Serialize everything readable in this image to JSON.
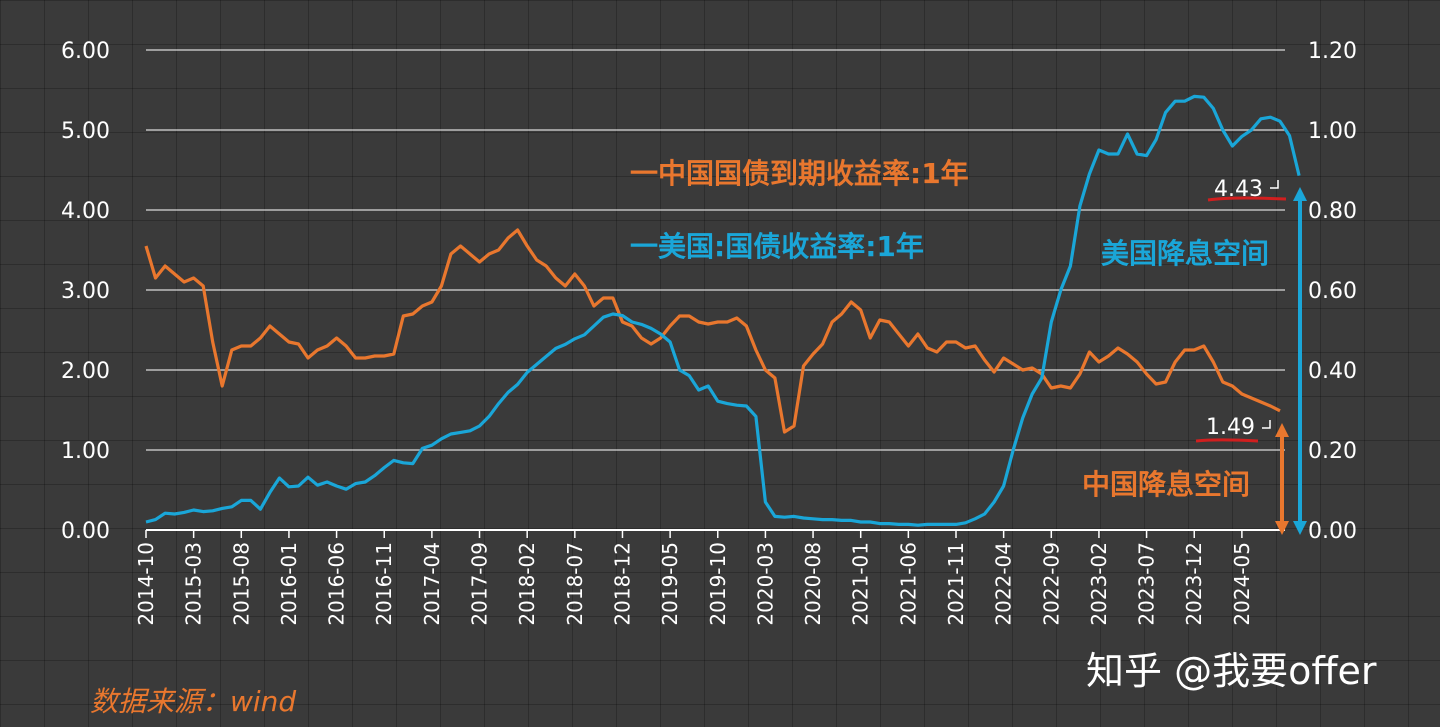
{
  "chart_data": {
    "type": "line",
    "source_label": "数据来源：wind",
    "watermark": "知乎 @我要offer",
    "y_left": {
      "ticks": [
        "0.00",
        "1.00",
        "2.00",
        "3.00",
        "4.00",
        "5.00",
        "6.00"
      ],
      "range": [
        0,
        6
      ]
    },
    "y_right": {
      "ticks": [
        "0.00",
        "0.20",
        "0.40",
        "0.60",
        "0.80",
        "1.00",
        "1.20"
      ],
      "range": [
        0,
        1.2
      ]
    },
    "x_ticks": [
      "2014-10",
      "2015-03",
      "2015-08",
      "2016-01",
      "2016-06",
      "2016-11",
      "2017-04",
      "2017-09",
      "2018-02",
      "2018-07",
      "2018-12",
      "2019-05",
      "2019-10",
      "2020-03",
      "2020-08",
      "2021-01",
      "2021-06",
      "2021-11",
      "2022-04",
      "2022-09",
      "2023-02",
      "2023-07",
      "2023-12",
      "2024-05"
    ],
    "series": [
      {
        "name": "一中国国债到期收益率:1年",
        "color": "#e9772e",
        "axis": "right",
        "start": "2014-10",
        "end_label": "1.49",
        "values": [
          0.71,
          0.63,
          0.66,
          0.64,
          0.62,
          0.63,
          0.61,
          0.47,
          0.36,
          0.45,
          0.46,
          0.46,
          0.48,
          0.51,
          0.49,
          0.47,
          0.465,
          0.43,
          0.45,
          0.46,
          0.48,
          0.46,
          0.43,
          0.43,
          0.435,
          0.435,
          0.44,
          0.535,
          0.54,
          0.56,
          0.57,
          0.61,
          0.69,
          0.71,
          0.69,
          0.67,
          0.69,
          0.7,
          0.73,
          0.75,
          0.71,
          0.675,
          0.66,
          0.63,
          0.61,
          0.64,
          0.61,
          0.56,
          0.58,
          0.58,
          0.52,
          0.51,
          0.48,
          0.465,
          0.48,
          0.51,
          0.535,
          0.535,
          0.52,
          0.515,
          0.52,
          0.52,
          0.53,
          0.51,
          0.45,
          0.4,
          0.38,
          0.245,
          0.26,
          0.41,
          0.44,
          0.465,
          0.52,
          0.54,
          0.57,
          0.55,
          0.48,
          0.525,
          0.52,
          0.49,
          0.46,
          0.49,
          0.455,
          0.445,
          0.47,
          0.47,
          0.455,
          0.46,
          0.425,
          0.395,
          0.43,
          0.415,
          0.4,
          0.405,
          0.39,
          0.355,
          0.36,
          0.355,
          0.39,
          0.445,
          0.42,
          0.435,
          0.455,
          0.44,
          0.42,
          0.39,
          0.365,
          0.37,
          0.42,
          0.45,
          0.45,
          0.46,
          0.42,
          0.37,
          0.36,
          0.34,
          0.33,
          0.32,
          0.31,
          0.298
        ]
      },
      {
        "name": "一美国:国债收益率:1年",
        "color": "#1aa6d8",
        "axis": "left",
        "start": "2014-10",
        "end_label": "4.43",
        "values": [
          0.1,
          0.13,
          0.21,
          0.2,
          0.22,
          0.25,
          0.23,
          0.24,
          0.27,
          0.29,
          0.37,
          0.37,
          0.26,
          0.47,
          0.65,
          0.54,
          0.55,
          0.66,
          0.56,
          0.6,
          0.55,
          0.51,
          0.58,
          0.6,
          0.68,
          0.78,
          0.87,
          0.84,
          0.83,
          1.02,
          1.06,
          1.14,
          1.2,
          1.22,
          1.24,
          1.3,
          1.42,
          1.58,
          1.72,
          1.82,
          1.97,
          2.07,
          2.17,
          2.27,
          2.32,
          2.39,
          2.44,
          2.55,
          2.66,
          2.7,
          2.68,
          2.6,
          2.57,
          2.52,
          2.45,
          2.35,
          2.0,
          1.93,
          1.75,
          1.8,
          1.61,
          1.58,
          1.56,
          1.55,
          1.42,
          0.35,
          0.17,
          0.16,
          0.17,
          0.15,
          0.14,
          0.13,
          0.13,
          0.12,
          0.12,
          0.1,
          0.1,
          0.08,
          0.08,
          0.07,
          0.07,
          0.06,
          0.07,
          0.07,
          0.07,
          0.07,
          0.09,
          0.14,
          0.2,
          0.35,
          0.55,
          1.0,
          1.4,
          1.7,
          1.9,
          2.6,
          3.0,
          3.3,
          4.05,
          4.45,
          4.75,
          4.7,
          4.7,
          4.95,
          4.7,
          4.68,
          4.88,
          5.22,
          5.36,
          5.36,
          5.42,
          5.41,
          5.27,
          5.0,
          4.8,
          4.92,
          5.0,
          5.14,
          5.16,
          5.11,
          4.93,
          4.43
        ]
      }
    ],
    "annotations": {
      "cn_label": "中国降息空间",
      "us_label": "美国降息空间"
    }
  }
}
